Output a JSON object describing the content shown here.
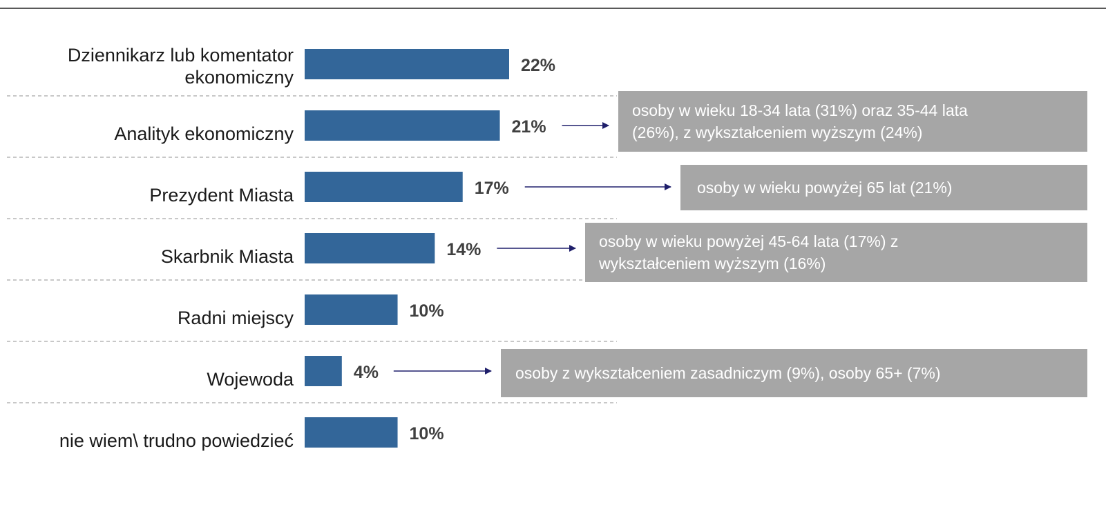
{
  "colors": {
    "bar": "#336699",
    "callout_bg": "#a6a6a6",
    "callout_text": "#ffffff",
    "arrow": "#1f1f6b",
    "separator": "#a6a6a6",
    "value_text": "#404040"
  },
  "chart_data": {
    "type": "bar",
    "orientation": "horizontal",
    "title": "",
    "xlabel": "",
    "ylabel": "",
    "xlim": [
      0,
      22
    ],
    "grid": false,
    "legend": "none",
    "value_format": "percent",
    "categories": [
      [
        "Dziennikarz lub komentator",
        "ekonomiczny"
      ],
      [
        "Analityk ekonomiczny"
      ],
      [
        "Prezydent Miasta"
      ],
      [
        "Skarbnik Miasta"
      ],
      [
        "Radni miejscy"
      ],
      [
        "Wojewoda"
      ],
      [
        "nie wiem\\ trudno powiedzieć"
      ]
    ],
    "values": [
      22,
      21,
      17,
      14,
      10,
      4,
      10
    ],
    "value_labels": [
      "22%",
      "21%",
      "17%",
      "14%",
      "10%",
      "4%",
      "10%"
    ]
  },
  "callouts": [
    {
      "row": 1,
      "lines": [
        "osoby w wieku 18-34 lata (31%) oraz 35-44 lata",
        "(26%),  z wykształceniem wyższym (24%)"
      ]
    },
    {
      "row": 2,
      "lines": [
        "osoby w wieku powyżej 65 lat (21%)"
      ]
    },
    {
      "row": 3,
      "lines": [
        "osoby w wieku powyżej 45-64 lata (17%) z",
        "wykształceniem wyższym (16%)"
      ]
    },
    {
      "row": 5,
      "lines": [
        "osoby z wykształceniem zasadniczym (9%), osoby 65+ (7%)"
      ]
    }
  ]
}
